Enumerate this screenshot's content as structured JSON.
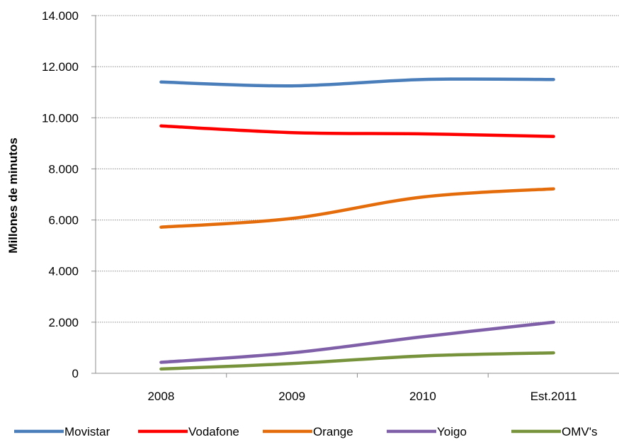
{
  "chart_data": {
    "type": "line",
    "title": "",
    "xlabel": "",
    "ylabel": "Millones de minutos",
    "categories": [
      "2008",
      "2009",
      "2010",
      "Est.2011"
    ],
    "ylim": [
      0,
      14000
    ],
    "yticks": [
      0,
      2000,
      4000,
      6000,
      8000,
      10000,
      12000,
      14000
    ],
    "ytick_labels": [
      "0",
      "2.000",
      "4.000",
      "6.000",
      "8.000",
      "10.000",
      "12.000",
      "14.000"
    ],
    "grid": "horizontal dotted",
    "legend_position": "bottom",
    "series": [
      {
        "name": "Movistar",
        "color": "#4A7EBB",
        "values": [
          11400,
          11250,
          11500,
          11500
        ]
      },
      {
        "name": "Vodafone",
        "color": "#FF0000",
        "values": [
          9680,
          9420,
          9370,
          9270
        ]
      },
      {
        "name": "Orange",
        "color": "#E46C0A",
        "values": [
          5720,
          6060,
          6900,
          7220
        ]
      },
      {
        "name": "Yoigo",
        "color": "#7F5FA8",
        "values": [
          430,
          800,
          1430,
          2000
        ]
      },
      {
        "name": "OMV's",
        "color": "#77933C",
        "values": [
          170,
          380,
          680,
          800
        ]
      }
    ]
  }
}
